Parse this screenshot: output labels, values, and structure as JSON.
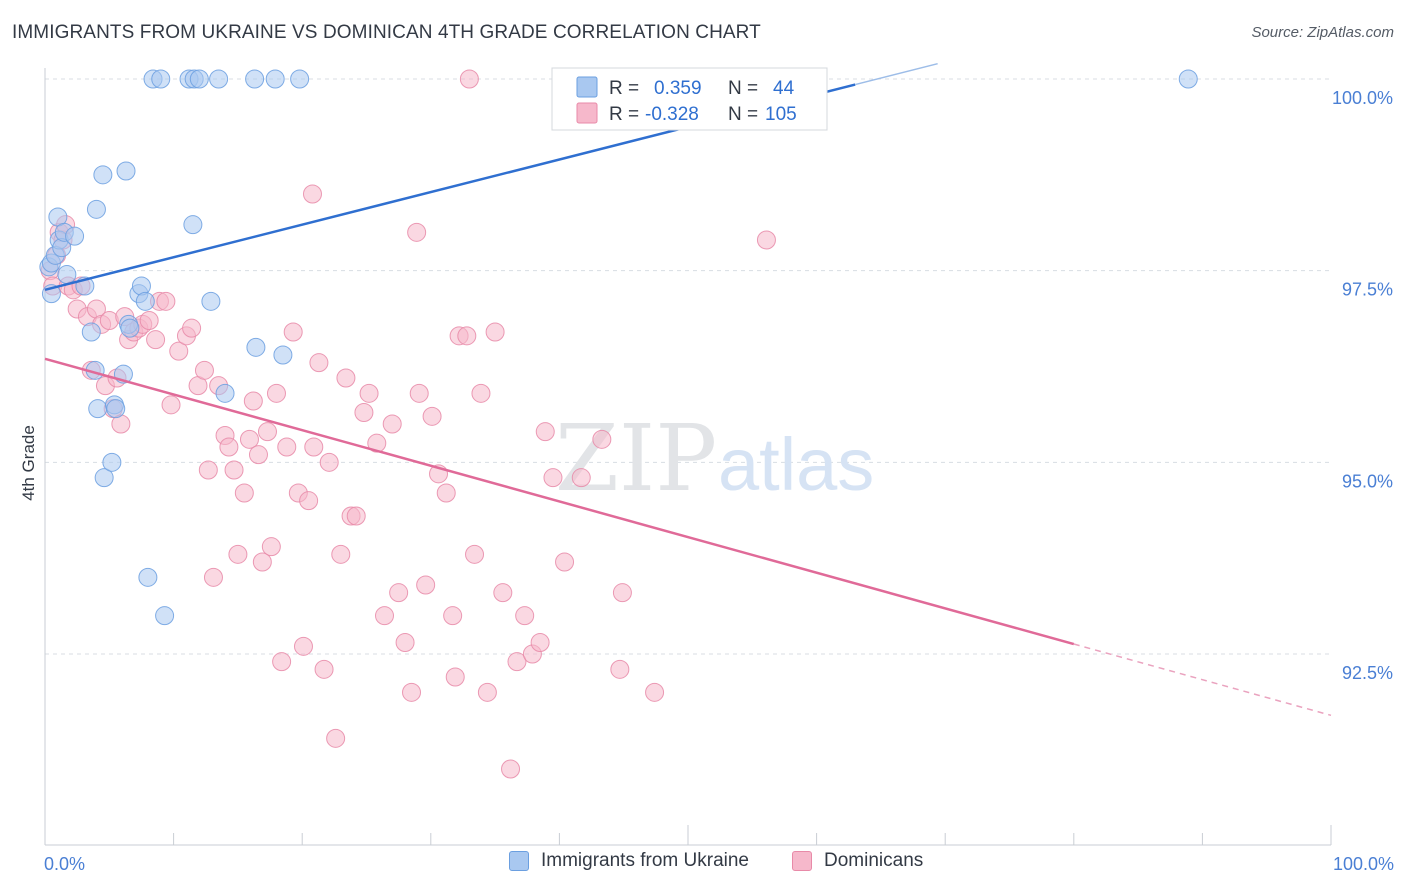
{
  "header": {
    "title": "IMMIGRANTS FROM UKRAINE VS DOMINICAN 4TH GRADE CORRELATION CHART",
    "source": "Source: ZipAtlas.com"
  },
  "colors": {
    "blue_fill": "#a9c8f0",
    "blue_stroke": "#6b9fe0",
    "blue_line": "#2f6fd0",
    "pink_fill": "#f6b8cb",
    "pink_stroke": "#e88aa8",
    "pink_line": "#e06a98",
    "axis_text": "#4a7fd4",
    "grid": "#d8dde3"
  },
  "chart_data": {
    "type": "scatter",
    "title": "IMMIGRANTS FROM UKRAINE VS DOMINICAN 4TH GRADE CORRELATION CHART",
    "xlabel": "",
    "ylabel": "4th Grade",
    "xlim": [
      0,
      100
    ],
    "ylim": [
      90.3,
      100.2
    ],
    "x_tick_labels": [
      "0.0%",
      "100.0%"
    ],
    "y_ticks": [
      92.5,
      95.0,
      97.5,
      100.0
    ],
    "y_tick_labels": [
      "92.5%",
      "95.0%",
      "97.5%",
      "100.0%"
    ],
    "grid": true,
    "legend_position": "top-center",
    "stats": [
      {
        "r_label": "R =",
        "r_value": "0.359",
        "n_label": "N =",
        "n_value": "44"
      },
      {
        "r_label": "R =",
        "r_value": "-0.328",
        "n_label": "N =",
        "n_value": "105"
      }
    ],
    "series": [
      {
        "name": "Immigrants from Ukraine",
        "color": "#a9c8f0",
        "trend": {
          "x0": 0,
          "y0": 97.25,
          "x1": 100,
          "y1": 101.5,
          "solid_to": 63
        },
        "points": [
          [
            0.3,
            97.55
          ],
          [
            0.5,
            97.2
          ],
          [
            0.5,
            97.6
          ],
          [
            0.8,
            97.7
          ],
          [
            1.0,
            98.2
          ],
          [
            1.1,
            97.9
          ],
          [
            1.3,
            97.8
          ],
          [
            1.5,
            98.0
          ],
          [
            1.7,
            97.45
          ],
          [
            2.3,
            97.95
          ],
          [
            3.1,
            97.3
          ],
          [
            3.6,
            96.7
          ],
          [
            3.9,
            96.2
          ],
          [
            4.1,
            95.7
          ],
          [
            4.5,
            98.75
          ],
          [
            4.6,
            94.8
          ],
          [
            5.2,
            95.0
          ],
          [
            5.4,
            95.75
          ],
          [
            5.5,
            95.7
          ],
          [
            6.1,
            96.15
          ],
          [
            6.3,
            98.8
          ],
          [
            6.5,
            96.8
          ],
          [
            6.6,
            96.75
          ],
          [
            7.3,
            97.2
          ],
          [
            7.5,
            97.3
          ],
          [
            7.8,
            97.1
          ],
          [
            8.0,
            93.5
          ],
          [
            8.4,
            100.0
          ],
          [
            9.0,
            100.0
          ],
          [
            9.3,
            93.0
          ],
          [
            11.2,
            100.0
          ],
          [
            11.5,
            98.1
          ],
          [
            11.6,
            100.0
          ],
          [
            12.0,
            100.0
          ],
          [
            12.9,
            97.1
          ],
          [
            13.5,
            100.0
          ],
          [
            14.0,
            95.9
          ],
          [
            16.3,
            100.0
          ],
          [
            16.4,
            96.5
          ],
          [
            17.9,
            100.0
          ],
          [
            18.5,
            96.4
          ],
          [
            19.8,
            100.0
          ],
          [
            88.9,
            100.0
          ],
          [
            4.0,
            98.3
          ]
        ]
      },
      {
        "name": "Dominicans",
        "color": "#f6b8cb",
        "trend": {
          "x0": 0,
          "y0": 96.35,
          "x1": 100,
          "y1": 91.7,
          "solid_to": 80
        },
        "points": [
          [
            0.4,
            97.5
          ],
          [
            0.6,
            97.3
          ],
          [
            0.9,
            97.7
          ],
          [
            1.1,
            98.0
          ],
          [
            1.4,
            97.9
          ],
          [
            1.6,
            98.1
          ],
          [
            1.8,
            97.3
          ],
          [
            2.2,
            97.25
          ],
          [
            2.5,
            97.0
          ],
          [
            2.8,
            97.3
          ],
          [
            3.3,
            96.9
          ],
          [
            3.6,
            96.2
          ],
          [
            4.0,
            97.0
          ],
          [
            4.4,
            96.8
          ],
          [
            4.7,
            96.0
          ],
          [
            5.0,
            96.85
          ],
          [
            5.3,
            95.7
          ],
          [
            5.6,
            96.1
          ],
          [
            5.9,
            95.5
          ],
          [
            6.2,
            96.9
          ],
          [
            6.5,
            96.6
          ],
          [
            6.9,
            96.7
          ],
          [
            7.3,
            96.75
          ],
          [
            7.6,
            96.8
          ],
          [
            8.1,
            96.85
          ],
          [
            8.6,
            96.6
          ],
          [
            8.9,
            97.1
          ],
          [
            9.4,
            97.1
          ],
          [
            9.8,
            95.75
          ],
          [
            10.4,
            96.45
          ],
          [
            11.0,
            96.65
          ],
          [
            11.4,
            96.75
          ],
          [
            11.9,
            96.0
          ],
          [
            12.4,
            96.2
          ],
          [
            12.7,
            94.9
          ],
          [
            13.1,
            93.5
          ],
          [
            13.5,
            96.0
          ],
          [
            14.0,
            95.35
          ],
          [
            14.3,
            95.2
          ],
          [
            14.7,
            94.9
          ],
          [
            15.0,
            93.8
          ],
          [
            15.5,
            94.6
          ],
          [
            15.9,
            95.3
          ],
          [
            16.2,
            95.8
          ],
          [
            16.6,
            95.1
          ],
          [
            16.9,
            93.7
          ],
          [
            17.3,
            95.4
          ],
          [
            17.6,
            93.9
          ],
          [
            18.0,
            95.9
          ],
          [
            18.4,
            92.4
          ],
          [
            18.8,
            95.2
          ],
          [
            19.3,
            96.7
          ],
          [
            19.7,
            94.6
          ],
          [
            20.1,
            92.6
          ],
          [
            20.5,
            94.5
          ],
          [
            20.9,
            95.2
          ],
          [
            21.3,
            96.3
          ],
          [
            21.7,
            92.3
          ],
          [
            22.1,
            95.0
          ],
          [
            22.6,
            91.4
          ],
          [
            23.0,
            93.8
          ],
          [
            23.4,
            96.1
          ],
          [
            23.8,
            94.3
          ],
          [
            24.2,
            94.3
          ],
          [
            24.8,
            95.65
          ],
          [
            25.2,
            95.9
          ],
          [
            25.8,
            95.25
          ],
          [
            26.4,
            93.0
          ],
          [
            27.0,
            95.5
          ],
          [
            27.5,
            93.3
          ],
          [
            28.0,
            92.65
          ],
          [
            28.5,
            92.0
          ],
          [
            29.1,
            95.9
          ],
          [
            29.6,
            93.4
          ],
          [
            30.1,
            95.6
          ],
          [
            30.6,
            94.85
          ],
          [
            31.2,
            94.6
          ],
          [
            31.7,
            93.0
          ],
          [
            32.2,
            96.65
          ],
          [
            32.8,
            96.65
          ],
          [
            33.4,
            93.8
          ],
          [
            33.9,
            95.9
          ],
          [
            34.4,
            92.0
          ],
          [
            35.0,
            96.7
          ],
          [
            35.6,
            93.3
          ],
          [
            36.2,
            91.0
          ],
          [
            36.7,
            92.4
          ],
          [
            37.3,
            93.0
          ],
          [
            37.9,
            92.5
          ],
          [
            38.5,
            92.65
          ],
          [
            38.9,
            95.4
          ],
          [
            39.5,
            94.8
          ],
          [
            40.4,
            93.7
          ],
          [
            41.7,
            94.8
          ],
          [
            43.3,
            95.3
          ],
          [
            44.7,
            92.3
          ],
          [
            44.9,
            93.3
          ],
          [
            47.4,
            92.0
          ],
          [
            48.5,
            100.0
          ],
          [
            56.1,
            97.9
          ],
          [
            28.9,
            98.0
          ],
          [
            31.9,
            92.2
          ],
          [
            20.8,
            98.5
          ],
          [
            40.2,
            100.0
          ],
          [
            33.0,
            100.0
          ]
        ]
      }
    ]
  },
  "watermark": {
    "zip": "ZIP",
    "atlas": "atlas"
  }
}
